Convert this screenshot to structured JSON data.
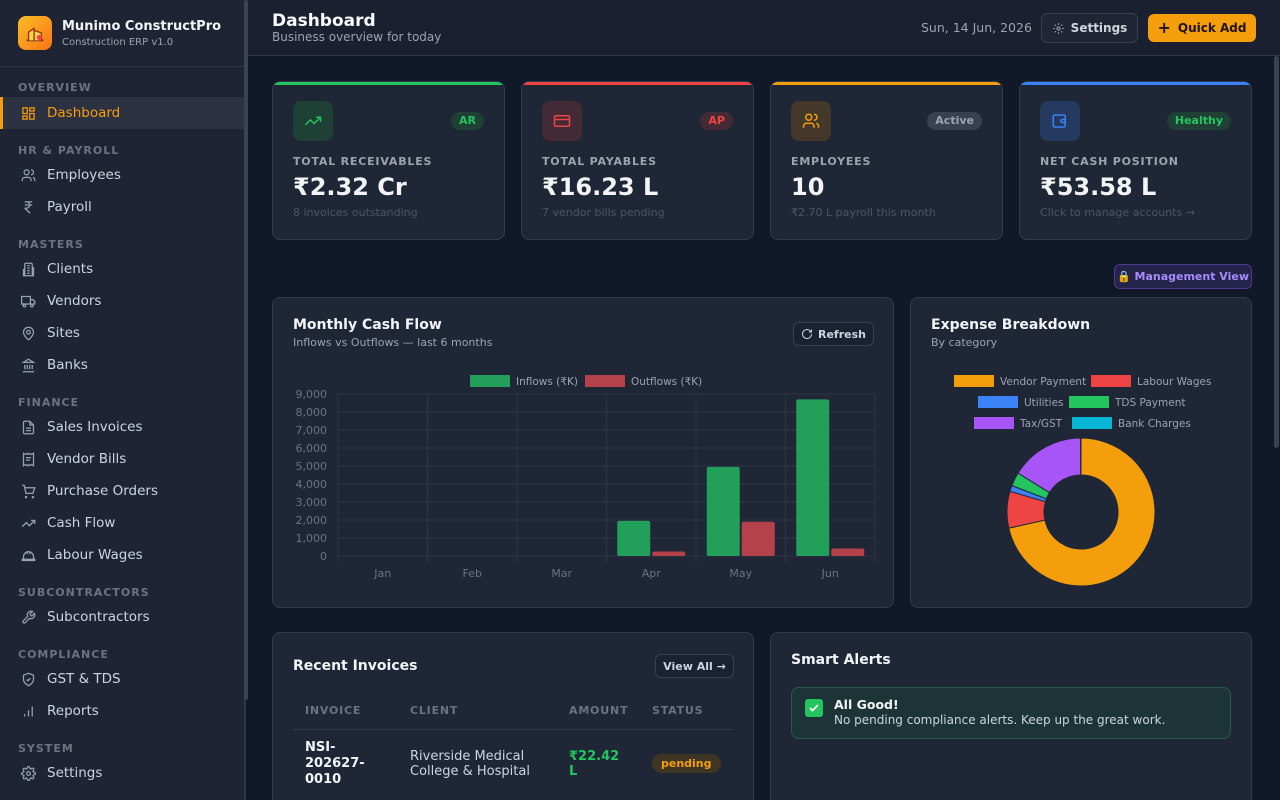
{
  "brand": {
    "name": "Munimo ConstructPro",
    "version": "Construction ERP v1.0"
  },
  "sidebar": {
    "sections": [
      {
        "title": "OVERVIEW",
        "items": [
          {
            "label": "Dashboard",
            "icon": "dashboard-icon",
            "active": true
          }
        ]
      },
      {
        "title": "HR & PAYROLL",
        "items": [
          {
            "label": "Employees",
            "icon": "users-icon"
          },
          {
            "label": "Payroll",
            "icon": "rupee-icon"
          }
        ]
      },
      {
        "title": "MASTERS",
        "items": [
          {
            "label": "Clients",
            "icon": "building-icon"
          },
          {
            "label": "Vendors",
            "icon": "truck-icon"
          },
          {
            "label": "Sites",
            "icon": "map-pin-icon"
          },
          {
            "label": "Banks",
            "icon": "bank-icon"
          }
        ]
      },
      {
        "title": "FINANCE",
        "items": [
          {
            "label": "Sales Invoices",
            "icon": "file-text-icon"
          },
          {
            "label": "Vendor Bills",
            "icon": "receipt-icon"
          },
          {
            "label": "Purchase Orders",
            "icon": "cart-icon"
          },
          {
            "label": "Cash Flow",
            "icon": "trending-up-icon"
          },
          {
            "label": "Labour Wages",
            "icon": "hard-hat-icon"
          }
        ]
      },
      {
        "title": "SUBCONTRACTORS",
        "items": [
          {
            "label": "Subcontractors",
            "icon": "wrench-icon"
          }
        ]
      },
      {
        "title": "COMPLIANCE",
        "items": [
          {
            "label": "GST & TDS",
            "icon": "shield-icon"
          },
          {
            "label": "Reports",
            "icon": "bar-chart-icon"
          }
        ]
      },
      {
        "title": "SYSTEM",
        "items": [
          {
            "label": "Settings",
            "icon": "gear-icon"
          }
        ]
      }
    ]
  },
  "header": {
    "title": "Dashboard",
    "subtitle": "Business overview for today",
    "date": "Sun, 14 Jun, 2026",
    "settings_label": "Settings",
    "quick_add_label": "Quick Add"
  },
  "stats": [
    {
      "label": "TOTAL RECEIVABLES",
      "value": "₹2.32 Cr",
      "sub": "8 invoices outstanding",
      "badge": "AR",
      "icon": "trending-up-icon",
      "color": "#22c55e"
    },
    {
      "label": "TOTAL PAYABLES",
      "value": "₹16.23 L",
      "sub": "7 vendor bills pending",
      "badge": "AP",
      "icon": "credit-card-icon",
      "color": "#ef4444"
    },
    {
      "label": "EMPLOYEES",
      "value": "10",
      "sub": "₹2.70 L payroll this month",
      "badge": "Active",
      "icon": "users-icon",
      "color": "#f59e0b"
    },
    {
      "label": "NET CASH POSITION",
      "value": "₹53.58 L",
      "sub": "Click to manage accounts →",
      "badge": "Healthy",
      "icon": "wallet-icon",
      "color": "#3b82f6"
    }
  ],
  "management_view_label": "🔒 Management View",
  "cashflow": {
    "title": "Monthly Cash Flow",
    "subtitle": "Inflows vs Outflows — last 6 months",
    "refresh_label": "Refresh"
  },
  "expense": {
    "title": "Expense Breakdown",
    "subtitle": "By category"
  },
  "chart_data": [
    {
      "type": "bar",
      "categories": [
        "Jan",
        "Feb",
        "Mar",
        "Apr",
        "May",
        "Jun"
      ],
      "series": [
        {
          "name": "Inflows (₹K)",
          "values": [
            0,
            0,
            0,
            1950,
            4950,
            8700
          ],
          "color": "#22a05a"
        },
        {
          "name": "Outflows (₹K)",
          "values": [
            0,
            0,
            0,
            250,
            1900,
            420
          ],
          "color": "#b5414a"
        }
      ],
      "ylim": [
        0,
        9000
      ],
      "yticks": [
        "9,000",
        "8,000",
        "7,000",
        "6,000",
        "5,000",
        "4,000",
        "3,000",
        "2,000",
        "1,000",
        "0"
      ],
      "legend": "top",
      "grid": true
    },
    {
      "type": "pie",
      "categories": [
        "Vendor Payment",
        "Labour Wages",
        "Utilities",
        "TDS Payment",
        "Tax/GST",
        "Bank Charges"
      ],
      "values": [
        71.5,
        8.0,
        1.3,
        3.0,
        16.1,
        0.1
      ],
      "colors": [
        "#f59e0b",
        "#ef4444",
        "#3b82f6",
        "#22c55e",
        "#a855f7",
        "#06b6d4"
      ],
      "legend": "top"
    }
  ],
  "invoices": {
    "title": "Recent Invoices",
    "view_all_label": "View All →",
    "columns": [
      "INVOICE",
      "CLIENT",
      "AMOUNT",
      "STATUS"
    ],
    "rows": [
      {
        "invoice": "NSI-202627-0010",
        "client": "Riverside Medical College & Hospital",
        "amount": "₹22.42 L",
        "status": "pending"
      }
    ]
  },
  "alerts": {
    "title": "Smart Alerts",
    "items": [
      {
        "icon": "check-icon",
        "title": "All Good!",
        "message": "No pending compliance alerts. Keep up the great work."
      }
    ]
  }
}
